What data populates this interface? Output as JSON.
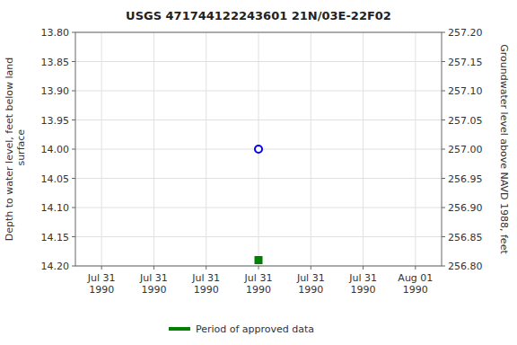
{
  "chart_data": {
    "type": "scatter",
    "title": "USGS 471744122243601 21N/03E-22F02",
    "ylabel": "Depth to water level, feet below land\n surface",
    "y2label": "Groundwater level above NAVD 1988, feet",
    "categories": [
      "Jul 31\n1990",
      "Jul 31\n1990",
      "Jul 31\n1990",
      "Jul 31\n1990",
      "Jul 31\n1990",
      "Jul 31\n1990",
      "Aug 01\n1990"
    ],
    "series": [
      {
        "color": "#0000ff",
        "marker": "circle-open",
        "values": [
          null,
          null,
          null,
          14.0,
          null,
          null,
          null
        ]
      },
      {
        "name": "Period of approved data",
        "color": "#008000",
        "marker": "square",
        "values": [
          null,
          null,
          null,
          14.19,
          null,
          null,
          null
        ]
      }
    ],
    "ylim": [
      14.2,
      13.8
    ],
    "yticks": [
      {
        "value": 13.8,
        "label": "13.80"
      },
      13.85,
      {
        "value": 13.9,
        "label": "13.90"
      },
      13.95,
      {
        "value": 14.0,
        "label": "14.00"
      },
      14.05,
      {
        "value": 14.1,
        "label": "14.10"
      },
      14.15,
      {
        "value": 14.2,
        "label": "14.20"
      }
    ],
    "y2lim": [
      256.8,
      257.2
    ],
    "y2ticks": [
      {
        "value": 257.2,
        "label": "257.20"
      },
      257.15,
      {
        "value": 257.1,
        "label": "257.10"
      },
      257.05,
      {
        "value": 257.0,
        "label": "257.00"
      },
      256.95,
      {
        "value": 256.9,
        "label": "256.90"
      },
      256.85,
      {
        "value": 256.8,
        "label": "256.80"
      }
    ],
    "grid": true,
    "legend": "bottom"
  }
}
